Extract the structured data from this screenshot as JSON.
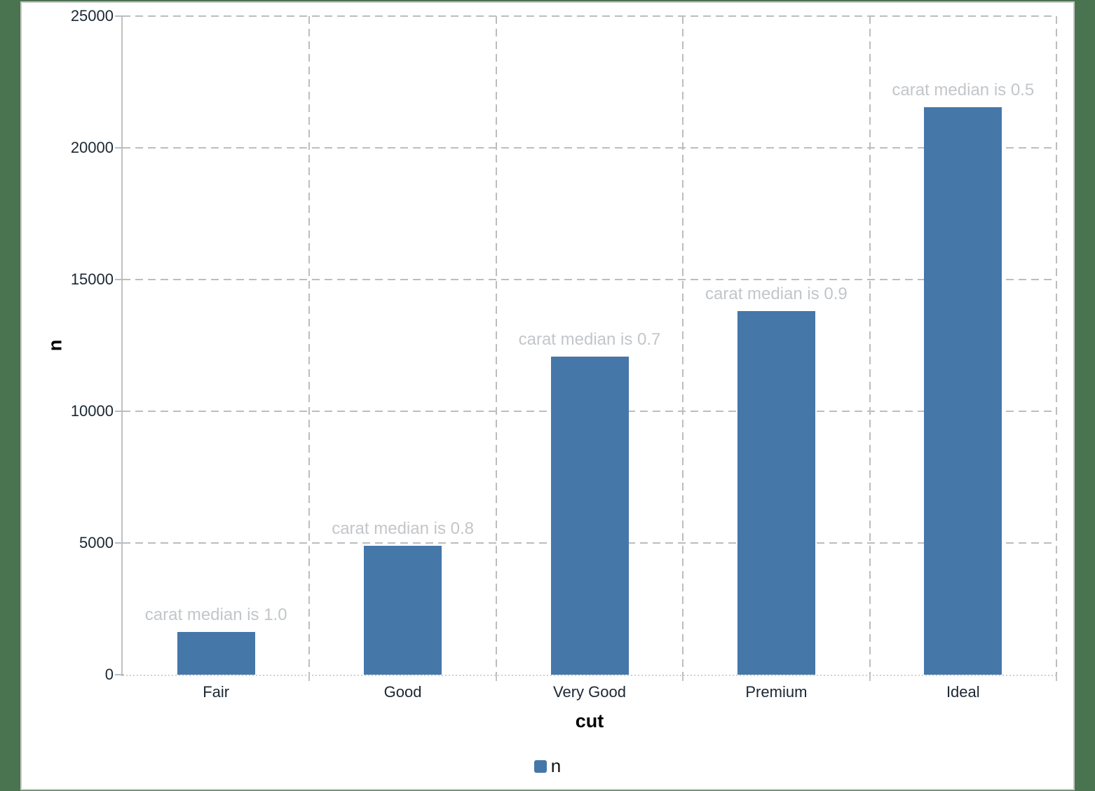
{
  "chart_data": {
    "type": "bar",
    "categories": [
      "Fair",
      "Good",
      "Very Good",
      "Premium",
      "Ideal"
    ],
    "series": [
      {
        "name": "n",
        "values": [
          1610,
          4906,
          12082,
          13791,
          21551
        ]
      }
    ],
    "annotations": [
      "carat median is 1.0",
      "carat median is 0.8",
      "carat median is 0.7",
      "carat median is 0.9",
      "carat median is 0.5"
    ],
    "title": "",
    "xlabel": "cut",
    "ylabel": "n",
    "ylim": [
      0,
      25000
    ],
    "yticks": [
      0,
      5000,
      10000,
      15000,
      20000,
      25000
    ],
    "ytick_labels": [
      "0",
      "5000",
      "10000",
      "15000",
      "20000",
      "25000"
    ],
    "grid": "dashed horizontal and vertical gridlines",
    "legend_position": "bottom-center"
  },
  "legend": {
    "label": "n"
  },
  "axes": {
    "x_title": "cut",
    "y_title": "n"
  },
  "colors": {
    "bar": "#4577a9",
    "desktop_background": "#4a7350",
    "plot_background": "#ffffff",
    "gridline": "#bdbdbd",
    "axis_line": "#c0c0c0",
    "tick_label": "#1a2733",
    "annotation_text": "#c3c6c9",
    "axis_title": "#000000"
  }
}
